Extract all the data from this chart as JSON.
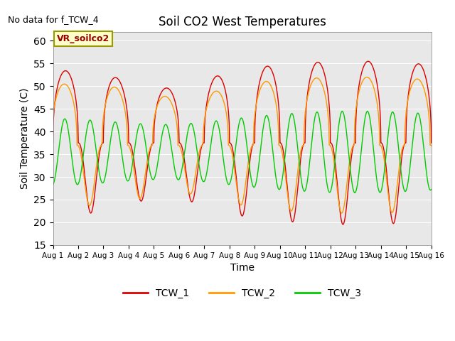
{
  "title": "Soil CO2 West Temperatures",
  "xlabel": "Time",
  "ylabel": "Soil Temperature (C)",
  "ylim": [
    15,
    62
  ],
  "yticks": [
    15,
    20,
    25,
    30,
    35,
    40,
    45,
    50,
    55,
    60
  ],
  "no_data_text": "No data for f_TCW_4",
  "annotation_text": "VR_soilco2",
  "annotation_box_color": "#FFFFCC",
  "annotation_border_color": "#999900",
  "bg_color": "#E8E8E8",
  "colors": {
    "TCW_1": "#DD0000",
    "TCW_2": "#FF9900",
    "TCW_3": "#00CC00"
  },
  "start_day": 1,
  "end_day": 16,
  "n_points": 2000
}
